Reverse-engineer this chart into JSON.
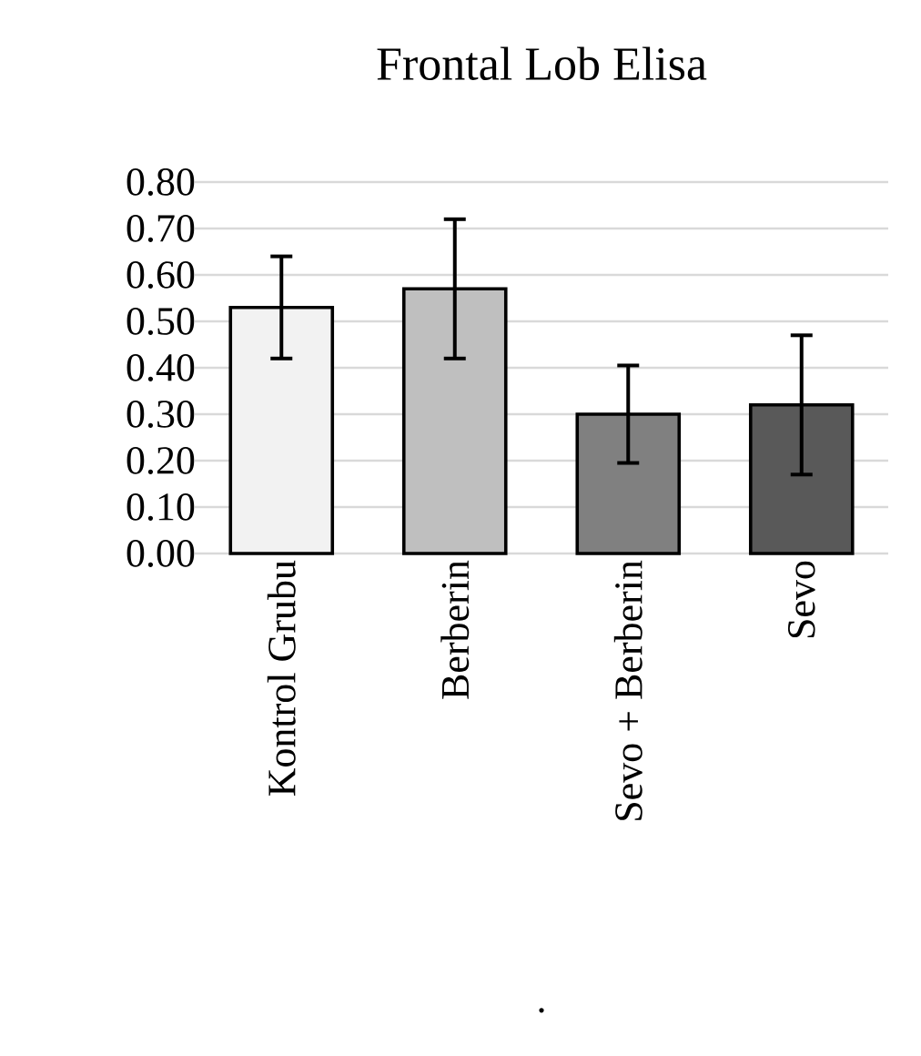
{
  "chart_data": {
    "type": "bar",
    "title": "Frontal Lob Elisa",
    "xlabel": ".",
    "categories": [
      "Kontrol Grubu",
      "Berberin",
      "Sevo + Berberin",
      "Sevo"
    ],
    "values": [
      0.53,
      0.57,
      0.3,
      0.32
    ],
    "errors": [
      0.11,
      0.15,
      0.105,
      0.15
    ],
    "colors": [
      "#f2f2f2",
      "#bfbfbf",
      "#808080",
      "#595959"
    ],
    "ylim": [
      0,
      0.8
    ],
    "yticks": [
      {
        "value": 0,
        "label": "0.00"
      },
      {
        "value": 0.1,
        "label": "0.10"
      },
      {
        "value": 0.2,
        "label": "0.20"
      },
      {
        "value": 0.3,
        "label": "0.30"
      },
      {
        "value": 0.4,
        "label": "0.40"
      },
      {
        "value": 0.5,
        "label": "0.50"
      },
      {
        "value": 0.6,
        "label": "0.60"
      },
      {
        "value": 0.7,
        "label": "0.70"
      },
      {
        "value": 0.8,
        "label": "0.80"
      }
    ],
    "grid": "y"
  }
}
